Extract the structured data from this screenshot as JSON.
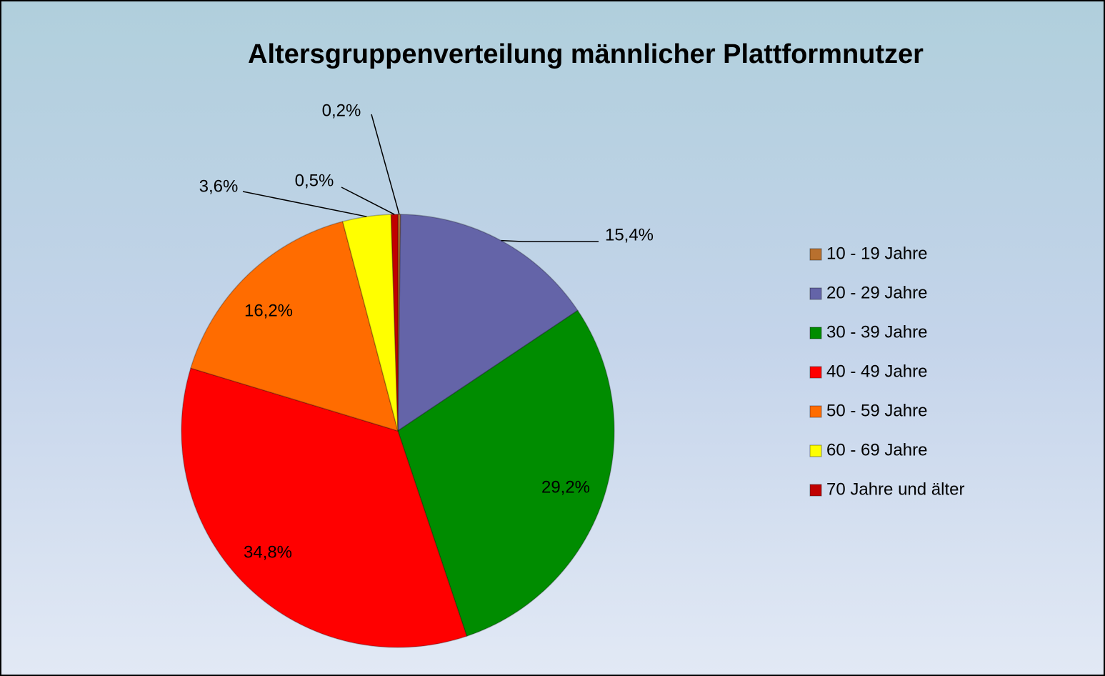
{
  "chart_data": {
    "type": "pie",
    "title": "Altersgruppenverteilung männlicher Plattformnutzer",
    "categories": [
      "10 - 19 Jahre",
      "20 - 29 Jahre",
      "30 - 39 Jahre",
      "40 - 49 Jahre",
      "50 - 59 Jahre",
      "60 - 69 Jahre",
      "70 Jahre und älter"
    ],
    "values": [
      0.2,
      15.4,
      29.2,
      34.8,
      16.2,
      3.6,
      0.5
    ],
    "value_labels": [
      "0,2%",
      "15,4%",
      "29,2%",
      "34,8%",
      "16,2%",
      "3,6%",
      "0,5%"
    ],
    "colors": [
      "#b8702e",
      "#6464a8",
      "#008c00",
      "#ff0000",
      "#ff6c00",
      "#ffff00",
      "#c00000"
    ],
    "legend": "right"
  }
}
